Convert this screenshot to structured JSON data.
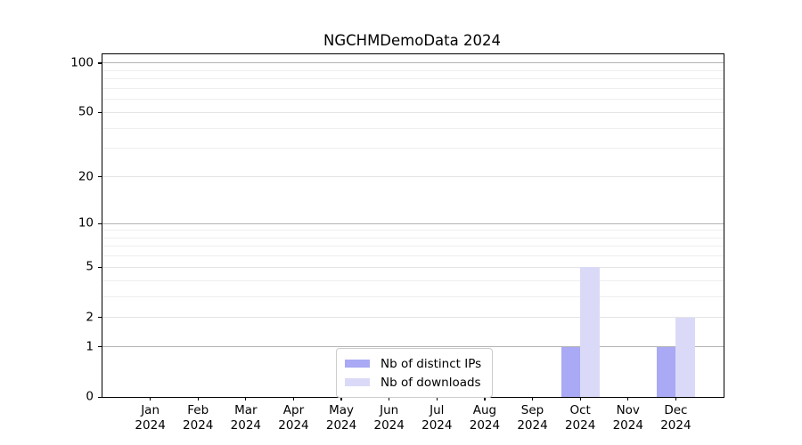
{
  "chart_data": {
    "type": "bar",
    "title": "NGCHMDemoData 2024",
    "categories": [
      "Jan",
      "Feb",
      "Mar",
      "Apr",
      "May",
      "Jun",
      "Jul",
      "Aug",
      "Sep",
      "Oct",
      "Nov",
      "Dec"
    ],
    "category_year": "2024",
    "series": [
      {
        "name": "Nb of distinct IPs",
        "color": "#a9a9f5",
        "values": [
          0,
          0,
          0,
          0,
          0,
          0,
          0,
          0,
          0,
          1,
          0,
          1
        ]
      },
      {
        "name": "Nb of downloads",
        "color": "#dadaf8",
        "values": [
          0,
          0,
          0,
          0,
          0,
          0,
          0,
          0,
          0,
          5,
          0,
          2
        ]
      }
    ],
    "xlabel": "",
    "ylabel": "",
    "y_scale": "log10(1+y)",
    "ylim": [
      0,
      113
    ],
    "y_major_ticks": [
      0,
      1,
      2,
      5,
      10,
      20,
      50,
      100
    ],
    "y_minor_gridlines": [
      3,
      4,
      6,
      7,
      8,
      9,
      30,
      40,
      60,
      70,
      80,
      90
    ],
    "grid": true,
    "legend_position": "lower center",
    "colors": {
      "spine": "#000000",
      "grid_power_of_ten": "#b3b3b3",
      "grid_major": "#e4e4e4",
      "grid_minor": "#eeeeee",
      "legend_border": "#cccccc",
      "background": "#ffffff"
    }
  }
}
